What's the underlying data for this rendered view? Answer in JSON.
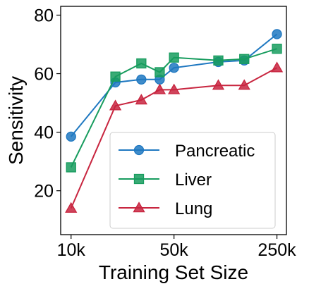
{
  "chart_data": {
    "type": "line",
    "title": "",
    "xlabel": "Training Set Size",
    "ylabel": "Sensitivity",
    "x_scale": "log",
    "xlim": [
      8500,
      290000
    ],
    "ylim": [
      5,
      83
    ],
    "xticks": [
      {
        "value": 10000,
        "label": "10k"
      },
      {
        "value": 50000,
        "label": "50k"
      },
      {
        "value": 250000,
        "label": "250k"
      }
    ],
    "yticks": [
      {
        "value": 20,
        "label": "20"
      },
      {
        "value": 40,
        "label": "40"
      },
      {
        "value": 60,
        "label": "60"
      },
      {
        "value": 80,
        "label": "80"
      }
    ],
    "grid": false,
    "legend_position": "lower-right",
    "x": [
      10000,
      20000,
      30000,
      40000,
      50000,
      100000,
      150000,
      250000
    ],
    "series": [
      {
        "name": "Pancreatic",
        "color": "#1f78c1",
        "marker": "circle",
        "values": [
          38.5,
          57,
          58,
          58,
          62,
          64,
          64.5,
          73.5
        ]
      },
      {
        "name": "Liver",
        "color": "#179c5e",
        "marker": "square",
        "values": [
          28,
          59,
          63.5,
          60.5,
          65.5,
          64.5,
          65,
          68.5
        ]
      },
      {
        "name": "Lung",
        "color": "#c8253f",
        "marker": "triangle",
        "values": [
          14,
          49,
          51,
          54.5,
          54.5,
          56,
          56,
          62
        ]
      }
    ]
  }
}
